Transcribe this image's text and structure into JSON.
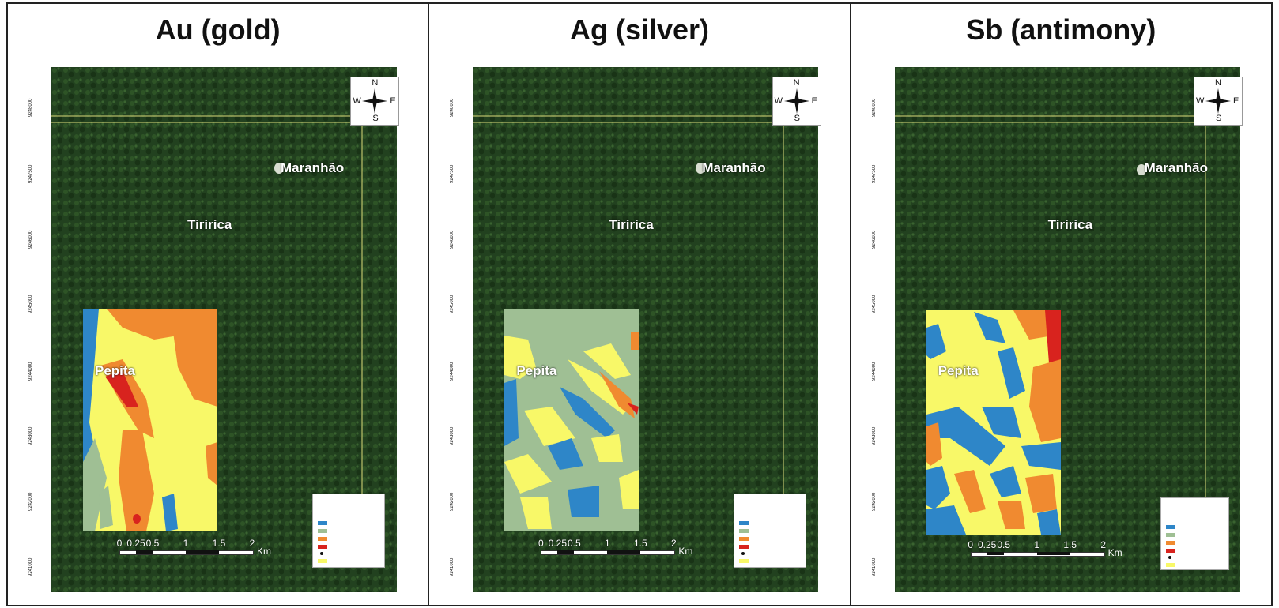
{
  "panels": [
    {
      "title": "Au (gold)",
      "element": "Au"
    },
    {
      "title": "Ag (silver)",
      "element": "Ag"
    },
    {
      "title": "Sb (antimony)",
      "element": "Sb"
    }
  ],
  "places": {
    "maranhao": "Maranhão",
    "tiririca": "Tiririca",
    "pepita": "Pepita"
  },
  "compass": {
    "n": "N",
    "s": "S",
    "e": "E",
    "w": "W"
  },
  "y_ticks": [
    "9248000",
    "9247500",
    "9246000",
    "9245000",
    "9244000",
    "9243000",
    "9242000",
    "9241000"
  ],
  "scale": {
    "ticks": [
      "0",
      "0.25",
      "0.5",
      "1",
      "1.5",
      "2"
    ],
    "unit": "Km"
  },
  "colors": {
    "blue": "#2e86c8",
    "sage": "#9fbf94",
    "yellow": "#f8f868",
    "orange": "#f08a30",
    "red": "#d8231e",
    "forest": "#22411f"
  }
}
